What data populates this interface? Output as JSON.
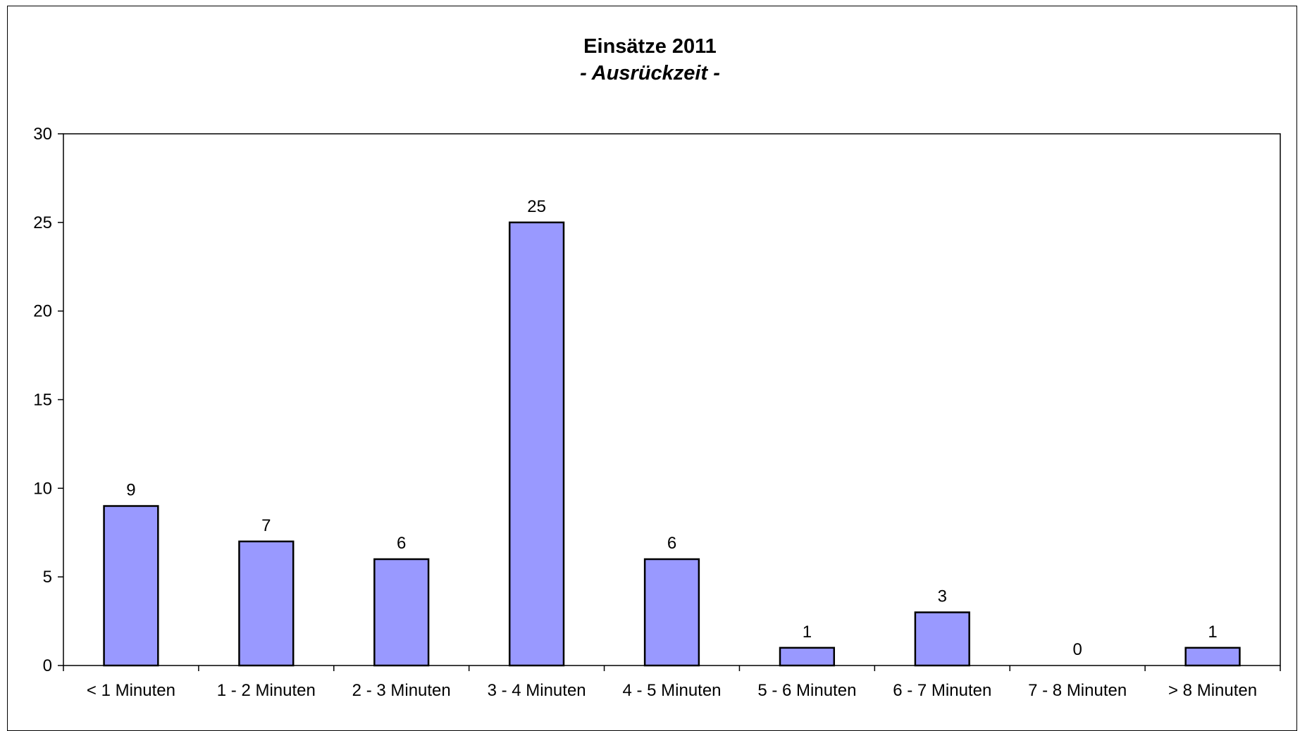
{
  "chart_data": {
    "type": "bar",
    "title": "Einsätze 2011",
    "subtitle": "- Ausrückzeit -",
    "categories": [
      "< 1 Minuten",
      "1 - 2 Minuten",
      "2 - 3 Minuten",
      "3 - 4 Minuten",
      "4 - 5 Minuten",
      "5 - 6 Minuten",
      "6 - 7 Minuten",
      "7 - 8 Minuten",
      "> 8 Minuten"
    ],
    "values": [
      9,
      7,
      6,
      25,
      6,
      1,
      3,
      0,
      1
    ],
    "ylim": [
      0,
      30
    ],
    "yticks": [
      0,
      5,
      10,
      15,
      20,
      25,
      30
    ],
    "grid": false,
    "legend": "none",
    "bar_color": "#9999ff",
    "bar_border_color": "#000000"
  }
}
